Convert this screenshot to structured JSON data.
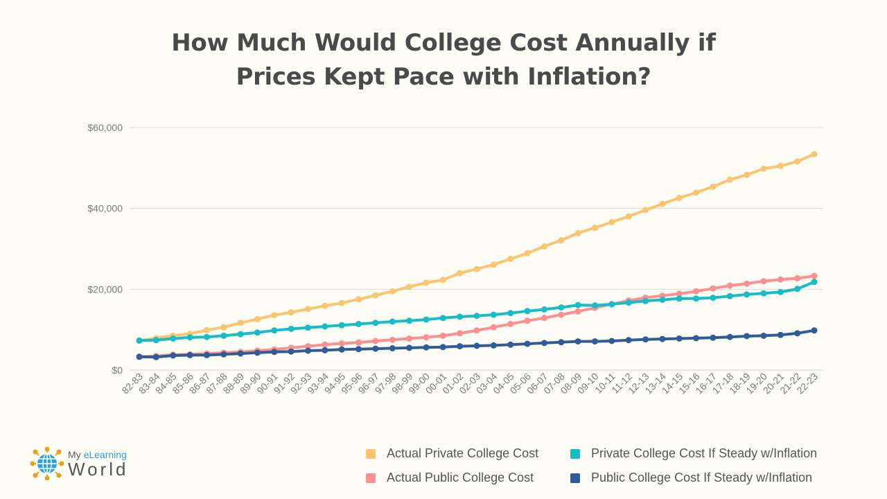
{
  "title_line1": "How Much Would College Cost Annually if",
  "title_line2": "Prices Kept Pace with Inflation?",
  "logo": {
    "line1_a": "My ",
    "line1_b": "eLearning",
    "line2": "World"
  },
  "colors": {
    "private_actual": "#fbc470",
    "public_actual": "#fc8f8f",
    "private_inflation": "#17bdc6",
    "public_inflation": "#2f5c97",
    "grid": "#dcdcd6",
    "axis_text": "#7a7a7a"
  },
  "chart_data": {
    "type": "line",
    "title": "How Much Would College Cost Annually if Prices Kept Pace with Inflation?",
    "xlabel": "",
    "ylabel": "",
    "ylim": [
      0,
      60000
    ],
    "yticks": [
      0,
      20000,
      40000,
      60000
    ],
    "ytick_labels": [
      "$0",
      "$20,000",
      "$40,000",
      "$60,000"
    ],
    "grid": true,
    "legend_position": "bottom-right",
    "categories": [
      "82-83",
      "83-84",
      "84-85",
      "85-86",
      "86-87",
      "87-88",
      "88-89",
      "89-90",
      "90-91",
      "91-92",
      "92-93",
      "93-94",
      "94-95",
      "95-96",
      "96-97",
      "97-98",
      "98-99",
      "99-00",
      "00-01",
      "01-02",
      "02-03",
      "03-04",
      "04-05",
      "05-06",
      "06-07",
      "07-08",
      "08-09",
      "09-10",
      "10-11",
      "11-12",
      "12-13",
      "13-14",
      "14-15",
      "15-16",
      "16-17",
      "17-18",
      "18-19",
      "19-20",
      "20-21",
      "21-22",
      "22-23"
    ],
    "series": [
      {
        "name": "Actual Private College Cost",
        "color_key": "private_actual",
        "values": [
          7300,
          7900,
          8500,
          9000,
          9900,
          10600,
          11700,
          12600,
          13600,
          14300,
          15100,
          15900,
          16600,
          17500,
          18500,
          19500,
          20600,
          21600,
          22300,
          24000,
          25000,
          26100,
          27500,
          28900,
          30600,
          32100,
          33900,
          35200,
          36600,
          38000,
          39600,
          41100,
          42600,
          43900,
          45400,
          47100,
          48300,
          49800,
          50500,
          51600,
          53400
        ]
      },
      {
        "name": "Private College Cost If Steady w/Inflation",
        "color_key": "private_inflation",
        "values": [
          7300,
          7400,
          7800,
          8100,
          8200,
          8500,
          8900,
          9300,
          9800,
          10200,
          10500,
          10800,
          11100,
          11400,
          11700,
          12000,
          12200,
          12500,
          12900,
          13200,
          13400,
          13700,
          14100,
          14600,
          15000,
          15500,
          16100,
          16000,
          16300,
          16700,
          17100,
          17400,
          17700,
          17700,
          17900,
          18300,
          18700,
          19000,
          19300,
          20100,
          21800
        ]
      },
      {
        "name": "Actual Public College Cost",
        "color_key": "public_actual",
        "values": [
          3300,
          3500,
          3800,
          3900,
          4100,
          4300,
          4500,
          4800,
          5100,
          5500,
          5900,
          6300,
          6600,
          6800,
          7200,
          7500,
          7800,
          8100,
          8500,
          9100,
          9800,
          10600,
          11400,
          12200,
          12900,
          13700,
          14500,
          15400,
          16300,
          17200,
          17900,
          18400,
          18900,
          19500,
          20200,
          20900,
          21400,
          22000,
          22400,
          22700,
          23300
        ]
      },
      {
        "name": "Public College Cost If Steady w/Inflation",
        "color_key": "public_inflation",
        "values": [
          3300,
          3200,
          3600,
          3700,
          3700,
          3900,
          4100,
          4300,
          4500,
          4600,
          4800,
          4900,
          5100,
          5200,
          5300,
          5400,
          5500,
          5600,
          5700,
          5900,
          6000,
          6100,
          6300,
          6500,
          6700,
          6900,
          7100,
          7100,
          7200,
          7400,
          7600,
          7700,
          7800,
          7900,
          8000,
          8200,
          8400,
          8500,
          8700,
          9100,
          9800
        ]
      }
    ]
  }
}
